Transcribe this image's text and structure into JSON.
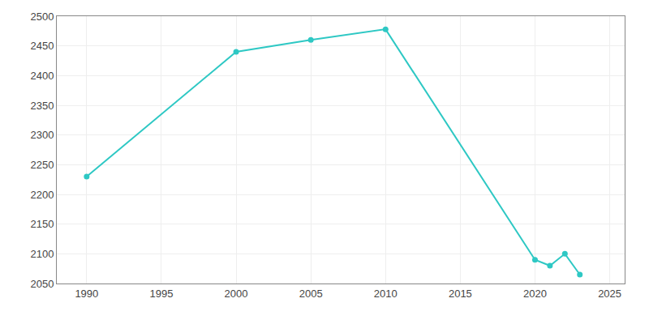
{
  "chart_data": {
    "type": "line",
    "x": [
      1990,
      2000,
      2005,
      2010,
      2020,
      2021,
      2022,
      2023
    ],
    "values": [
      2230,
      2440,
      2460,
      2478,
      2090,
      2080,
      2100,
      2065
    ],
    "color": "#2EC8C4",
    "marker": "circle",
    "xlim": [
      1988,
      2026
    ],
    "ylim": [
      2050,
      2500
    ],
    "xticks": [
      1990,
      1995,
      2000,
      2005,
      2010,
      2015,
      2020,
      2025
    ],
    "yticks": [
      2050,
      2100,
      2150,
      2200,
      2250,
      2300,
      2350,
      2400,
      2450,
      2500
    ],
    "grid": true
  }
}
